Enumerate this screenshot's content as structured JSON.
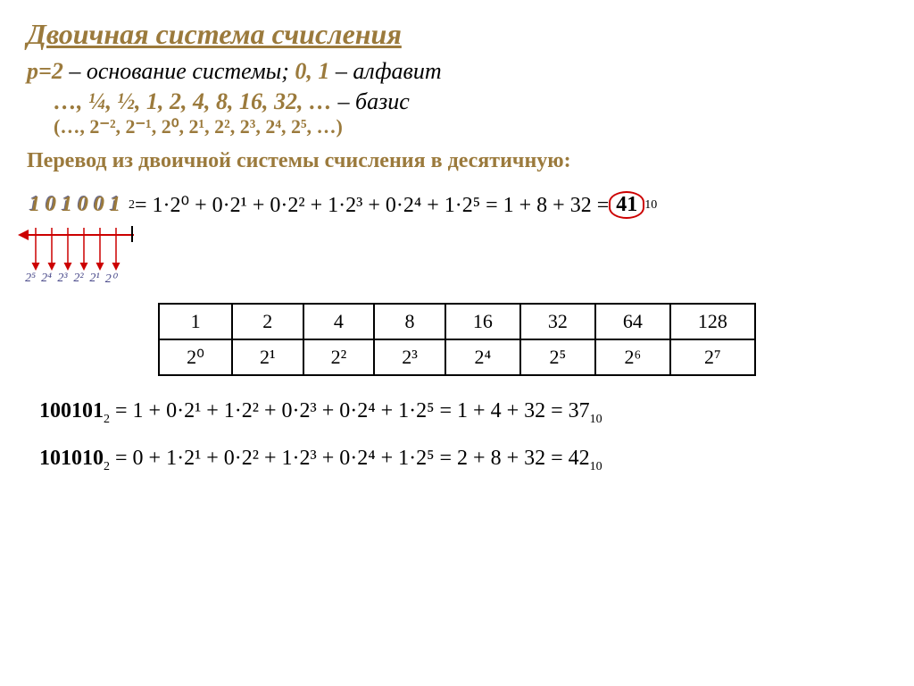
{
  "title": "Двоичная  система счисления",
  "base_line": {
    "p": "р=2",
    "t1": " – основание системы;    ",
    "alpha": "0, 1",
    "t2": "  – алфавит"
  },
  "basis_line": "…, ¼, ½, 1, 2, 4, 8, 16, 32, … ",
  "basis_label": "– базис",
  "basis_powers": "(…, 2⁻², 2⁻¹, 2⁰, 2¹, 2², 2³, 2⁴, 2⁵, …)",
  "subtitle": "Перевод из двоичной системы счисления в десятичную:",
  "binary_digits": [
    "1",
    "0",
    "1",
    "0",
    "0",
    "1"
  ],
  "binary_sub": "2",
  "main_formula": " = 1·2⁰ + 0·2¹ + 0·2² + 1·2³ + 0·2⁴ + 1·2⁵ = 1 + 8 + 32 =  ",
  "result_val": "41",
  "result_sub": "10",
  "arrow_powers": [
    "2⁵",
    "2⁴",
    "2³",
    "2²",
    "2¹",
    "2⁰"
  ],
  "table": {
    "row1": [
      "1",
      "2",
      "4",
      "8",
      "16",
      "32",
      "64",
      "128"
    ],
    "row2": [
      "2⁰",
      "2¹",
      "2²",
      "2³",
      "2⁴",
      "2⁵",
      "2⁶",
      "2⁷"
    ]
  },
  "examples": [
    {
      "bin": "100101",
      "sub": "2",
      "mid": "  = 1 + 0·2¹ + 1·2² + 0·2³ + 0·2⁴ + 1·2⁵ = 1 + 4 + 32 = 37",
      "rsub": "10"
    },
    {
      "bin": "101010",
      "sub": "2",
      "mid": "  = 0 + 1·2¹ + 0·2² + 1·2³ + 0·2⁴ + 1·2⁵ = 2 + 8 + 32 = 42",
      "rsub": "10"
    }
  ],
  "colors": {
    "brown": "#9b7a3c",
    "red": "#c00",
    "blue": "#4a4a8a"
  }
}
